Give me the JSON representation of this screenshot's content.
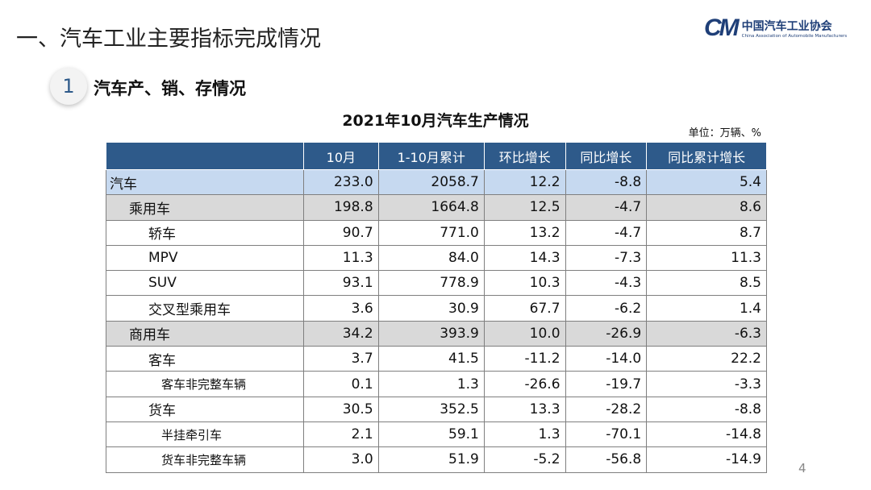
{
  "slide": {
    "title": "一、汽车工业主要指标完成情况",
    "section_number": "1",
    "section_title": "汽车产、销、存情况",
    "page_number": "4"
  },
  "logo": {
    "mark": "CM",
    "cn": "中国汽车工业协会",
    "en": "China Association of Automobile Manufacturers"
  },
  "table": {
    "title": "2021年10月汽车生产情况",
    "unit": "单位：万辆、%",
    "headers": [
      "",
      "10月",
      "1-10月累计",
      "环比增长",
      "同比增长",
      "同比累计增长"
    ],
    "rows": [
      {
        "label": "汽车",
        "indent": 0,
        "values": [
          "233.0",
          "2058.7",
          "12.2",
          "-8.8",
          "5.4"
        ]
      },
      {
        "label": "乘用车",
        "indent": 1,
        "values": [
          "198.8",
          "1664.8",
          "12.5",
          "-4.7",
          "8.6"
        ]
      },
      {
        "label": "轿车",
        "indent": 2,
        "values": [
          "90.7",
          "771.0",
          "13.2",
          "-4.7",
          "8.7"
        ]
      },
      {
        "label": "MPV",
        "indent": 2,
        "values": [
          "11.3",
          "84.0",
          "14.3",
          "-7.3",
          "11.3"
        ]
      },
      {
        "label": "SUV",
        "indent": 2,
        "values": [
          "93.1",
          "778.9",
          "10.3",
          "-4.3",
          "8.5"
        ]
      },
      {
        "label": "交叉型乘用车",
        "indent": 2,
        "values": [
          "3.6",
          "30.9",
          "67.7",
          "-6.2",
          "1.4"
        ]
      },
      {
        "label": "商用车",
        "indent": 1,
        "values": [
          "34.2",
          "393.9",
          "10.0",
          "-26.9",
          "-6.3"
        ]
      },
      {
        "label": "客车",
        "indent": 2,
        "values": [
          "3.7",
          "41.5",
          "-11.2",
          "-14.0",
          "22.2"
        ]
      },
      {
        "label": "客车非完整车辆",
        "indent": 3,
        "values": [
          "0.1",
          "1.3",
          "-26.6",
          "-19.7",
          "-3.3"
        ]
      },
      {
        "label": "货车",
        "indent": 2,
        "values": [
          "30.5",
          "352.5",
          "13.3",
          "-28.2",
          "-8.8"
        ]
      },
      {
        "label": "半挂牵引车",
        "indent": 3,
        "values": [
          "2.1",
          "59.1",
          "1.3",
          "-70.1",
          "-14.8"
        ]
      },
      {
        "label": "货车非完整车辆",
        "indent": 3,
        "values": [
          "3.0",
          "51.9",
          "-5.2",
          "-56.8",
          "-14.9"
        ]
      }
    ]
  },
  "colors": {
    "header": "#2e5a8a",
    "total_row": "#c6d9f0",
    "category_row": "#d9d9d9"
  }
}
